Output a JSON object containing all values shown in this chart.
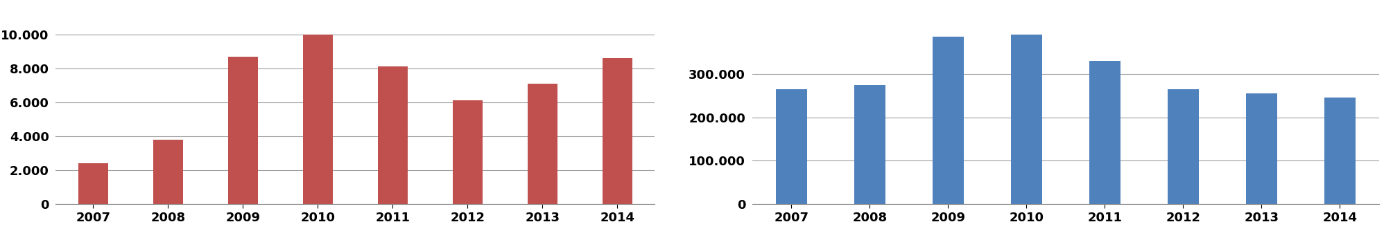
{
  "left_chart": {
    "years": [
      "2007",
      "2008",
      "2009",
      "2010",
      "2011",
      "2012",
      "2013",
      "2014"
    ],
    "values": [
      2400,
      3800,
      8700,
      10000,
      8100,
      6100,
      7100,
      8600
    ],
    "bar_color": "#C0504D",
    "ylim": [
      0,
      11000
    ],
    "yticks": [
      0,
      2000,
      4000,
      6000,
      8000,
      10000
    ],
    "ytick_labels": [
      "0",
      "2.000",
      "4.000",
      "6.000",
      "8.000",
      "10.000"
    ]
  },
  "right_chart": {
    "years": [
      "2007",
      "2008",
      "2009",
      "2010",
      "2011",
      "2012",
      "2013",
      "2014"
    ],
    "values": [
      265000,
      275000,
      385000,
      390000,
      330000,
      265000,
      255000,
      245000
    ],
    "bar_color": "#4F81BD",
    "ylim": [
      0,
      430000
    ],
    "yticks": [
      0,
      100000,
      200000,
      300000
    ],
    "ytick_labels": [
      "0",
      "100.000",
      "200.000",
      "300.000"
    ]
  },
  "background_color": "#FFFFFF",
  "grid_color": "#A0A0A0",
  "tick_fontsize": 13,
  "bar_width": 0.4
}
